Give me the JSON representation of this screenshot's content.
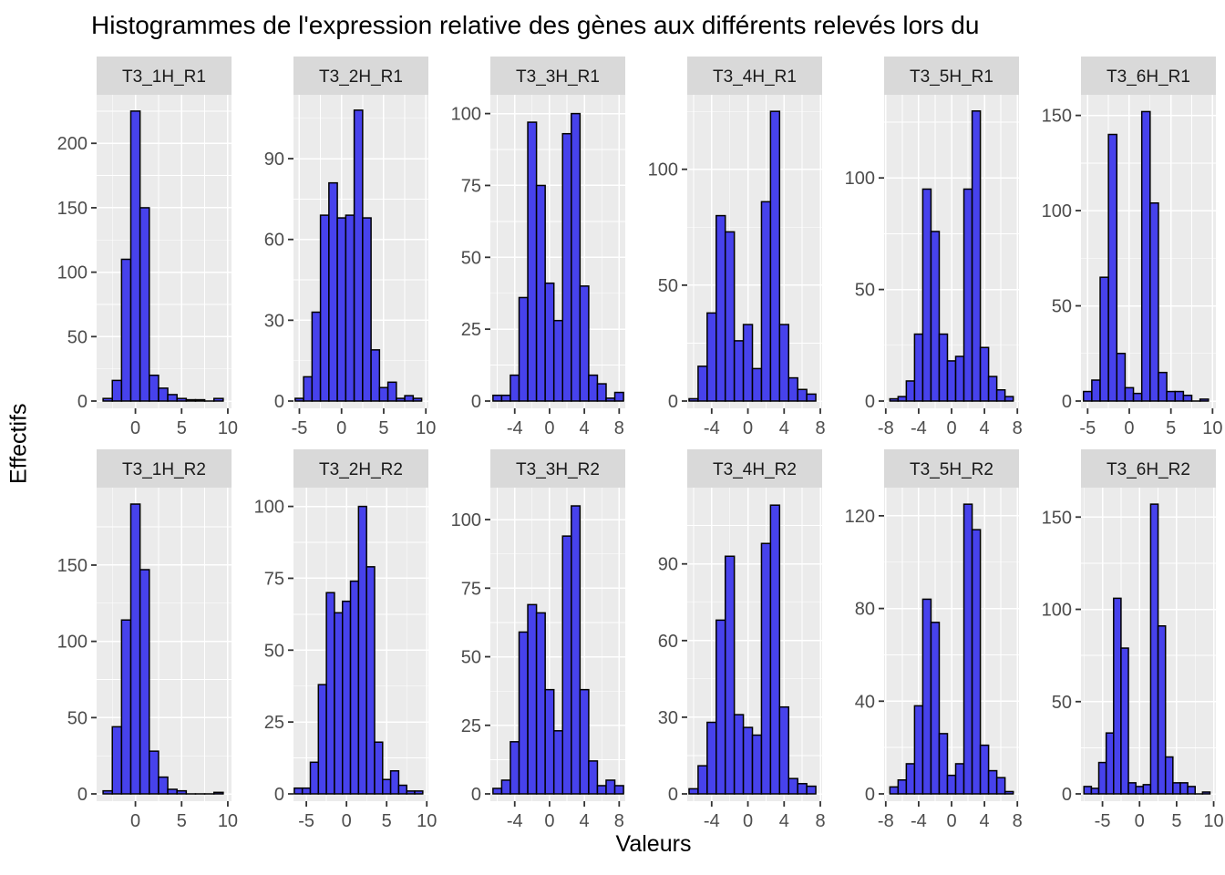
{
  "chart_data": {
    "type": "bar",
    "subtype": "faceted-histograms",
    "title": "Histogrammes de l'expression relative des gènes aux différents relevés lors du",
    "xlabel": "Valeurs",
    "ylabel": "Effectifs",
    "rows": 2,
    "cols": 6,
    "grid": "on",
    "legend": "none",
    "colors": {
      "bar_fill": "#4742EC",
      "bar_stroke": "#000000",
      "panel_bg": "#EBEBEB",
      "strip_bg": "#D9D9D9",
      "strip_text": "#1A1A1A",
      "grid_line": "#FFFFFF",
      "tick_label": "#4D4D4D",
      "tick_mark": "#333333"
    },
    "bin_width": 1,
    "panels": [
      {
        "label": "T3_1H_R1",
        "first_bin_center": -3,
        "counts": [
          2,
          16,
          110,
          225,
          150,
          20,
          10,
          5,
          2,
          1,
          1,
          0,
          2
        ],
        "x_ticks": [
          0,
          5,
          10
        ],
        "y_ticks": [
          0,
          50,
          100,
          150,
          200
        ],
        "xlim": [
          -4.2,
          10.4
        ],
        "ymax": 232
      },
      {
        "label": "T3_2H_R1",
        "first_bin_center": -5,
        "counts": [
          1,
          9,
          33,
          69,
          81,
          68,
          69,
          108,
          68,
          19,
          5,
          7,
          1,
          2,
          1
        ],
        "x_ticks": [
          -5,
          0,
          5,
          10
        ],
        "y_ticks": [
          0,
          30,
          60,
          90
        ],
        "xlim": [
          -5.7,
          10.3
        ],
        "ymax": 111
      },
      {
        "label": "T3_3H_R1",
        "first_bin_center": -6,
        "counts": [
          2,
          2,
          9,
          36,
          97,
          75,
          41,
          28,
          93,
          100,
          40,
          9,
          6,
          1,
          3
        ],
        "x_ticks": [
          -4,
          0,
          4,
          8
        ],
        "y_ticks": [
          0,
          25,
          50,
          75,
          100
        ],
        "xlim": [
          -6.8,
          8.7
        ],
        "ymax": 104
      },
      {
        "label": "T3_4H_R1",
        "first_bin_center": -6,
        "counts": [
          1,
          15,
          38,
          80,
          73,
          26,
          33,
          14,
          86,
          125,
          33,
          10,
          5,
          3
        ],
        "x_ticks": [
          -4,
          0,
          4,
          8
        ],
        "y_ticks": [
          0,
          50,
          100
        ],
        "xlim": [
          -6.7,
          8.2
        ],
        "ymax": 129
      },
      {
        "label": "T3_5H_R1",
        "first_bin_center": -7,
        "counts": [
          1,
          2,
          9,
          30,
          95,
          76,
          30,
          18,
          20,
          95,
          130,
          24,
          11,
          5,
          2
        ],
        "x_ticks": [
          -8,
          -4,
          0,
          4,
          8
        ],
        "y_ticks": [
          0,
          50,
          100
        ],
        "xlim": [
          -8.2,
          8.2
        ],
        "ymax": 134
      },
      {
        "label": "T3_6H_R1",
        "first_bin_center": -5,
        "counts": [
          5,
          11,
          65,
          140,
          25,
          7,
          4,
          152,
          104,
          15,
          5,
          5,
          3,
          0,
          1
        ],
        "x_ticks": [
          -5,
          0,
          5,
          10
        ],
        "y_ticks": [
          0,
          50,
          100,
          150
        ],
        "xlim": [
          -5.8,
          10.4
        ],
        "ymax": 157
      },
      {
        "label": "T3_1H_R2",
        "first_bin_center": -3,
        "counts": [
          2,
          44,
          114,
          190,
          147,
          28,
          11,
          3,
          2,
          0,
          0,
          0,
          1
        ],
        "x_ticks": [
          0,
          5,
          10
        ],
        "y_ticks": [
          0,
          50,
          100,
          150
        ],
        "xlim": [
          -4.2,
          10.4
        ],
        "ymax": 196
      },
      {
        "label": "T3_2H_R2",
        "first_bin_center": -6,
        "counts": [
          2,
          2,
          11,
          38,
          70,
          63,
          67,
          74,
          100,
          79,
          18,
          5,
          8,
          3,
          1,
          1
        ],
        "x_ticks": [
          -5,
          0,
          5,
          10
        ],
        "y_ticks": [
          0,
          25,
          50,
          75,
          100
        ],
        "xlim": [
          -6.6,
          10.2
        ],
        "ymax": 104
      },
      {
        "label": "T3_3H_R2",
        "first_bin_center": -6,
        "counts": [
          2,
          5,
          19,
          59,
          69,
          66,
          38,
          23,
          94,
          105,
          38,
          12,
          3,
          5,
          3
        ],
        "x_ticks": [
          -4,
          0,
          4,
          8
        ],
        "y_ticks": [
          0,
          25,
          50,
          75,
          100
        ],
        "xlim": [
          -6.8,
          8.7
        ],
        "ymax": 109
      },
      {
        "label": "T3_4H_R2",
        "first_bin_center": -6,
        "counts": [
          2,
          11,
          28,
          68,
          93,
          31,
          26,
          23,
          98,
          113,
          34,
          6,
          4,
          3
        ],
        "x_ticks": [
          -4,
          0,
          4,
          8
        ],
        "y_ticks": [
          0,
          30,
          60,
          90
        ],
        "xlim": [
          -6.7,
          8.2
        ],
        "ymax": 117
      },
      {
        "label": "T3_5H_R2",
        "first_bin_center": -7,
        "counts": [
          3,
          6,
          13,
          38,
          84,
          74,
          26,
          8,
          13,
          125,
          114,
          21,
          10,
          7,
          1
        ],
        "x_ticks": [
          -8,
          -4,
          0,
          4,
          8
        ],
        "y_ticks": [
          0,
          40,
          80,
          120
        ],
        "xlim": [
          -8.2,
          8.2
        ],
        "ymax": 129
      },
      {
        "label": "T3_6H_R2",
        "first_bin_center": -7,
        "counts": [
          4,
          3,
          17,
          33,
          106,
          79,
          6,
          4,
          5,
          157,
          91,
          20,
          6,
          6,
          4,
          0,
          1
        ],
        "x_ticks": [
          -5,
          0,
          5,
          10
        ],
        "y_ticks": [
          0,
          50,
          100,
          150
        ],
        "xlim": [
          -7.9,
          10.3
        ],
        "ymax": 162
      }
    ]
  }
}
